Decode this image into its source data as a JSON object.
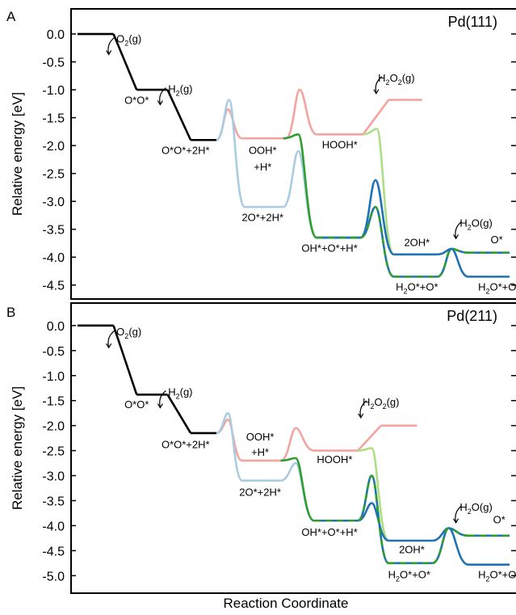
{
  "figure": {
    "xlabel": "Reaction Coordinate",
    "ylabel": "Relative energy [eV]"
  },
  "colors": {
    "black": "#000000",
    "pink": "#f4a39f",
    "light_blue": "#a9cce3",
    "dark_blue": "#1f72b3",
    "green": "#2e9e2e",
    "light_green": "#aede84"
  },
  "chart_data": [
    {
      "type": "line",
      "panel_letter": "A",
      "title": "Pd(111)",
      "ylabel": "Relative energy [eV]",
      "xlabel": "",
      "ylim": [
        -4.75,
        0.45
      ],
      "yticks": [
        "0.0",
        "-0.5",
        "-1.0",
        "-1.5",
        "-2.0",
        "-2.5",
        "-3.0",
        "-3.5",
        "-4.0",
        "-4.5"
      ],
      "series": [
        {
          "color": "black",
          "dashed": false,
          "segments": [
            {
              "kind": "flat",
              "x0": 0.0,
              "x1": 0.7,
              "y": 0.0
            },
            {
              "kind": "step",
              "x0": 0.7,
              "x1": 1.15,
              "y0": 0.0,
              "y1": -1.0
            },
            {
              "kind": "flat",
              "x0": 1.15,
              "x1": 1.75,
              "y": -1.0
            },
            {
              "kind": "step",
              "x0": 1.75,
              "x1": 2.2,
              "y0": -1.0,
              "y1": -1.9
            },
            {
              "kind": "flat",
              "x0": 2.2,
              "x1": 2.7,
              "y": -1.9
            }
          ]
        },
        {
          "color": "pink",
          "dashed": false,
          "segments": [
            {
              "kind": "barrier",
              "x0": 2.7,
              "x1": 3.2,
              "y0": -1.9,
              "peak": -1.35,
              "y1": -1.87
            },
            {
              "kind": "flat",
              "x0": 3.2,
              "x1": 4.05,
              "y": -1.87
            },
            {
              "kind": "barrier",
              "x0": 4.05,
              "x1": 4.65,
              "y0": -1.87,
              "peak": -1.0,
              "y1": -1.8
            },
            {
              "kind": "flat",
              "x0": 4.65,
              "x1": 5.55,
              "y": -1.8
            },
            {
              "kind": "step",
              "x0": 5.55,
              "x1": 6.05,
              "y0": -1.8,
              "y1": -1.18
            },
            {
              "kind": "flat",
              "x0": 6.05,
              "x1": 6.7,
              "y": -1.18
            }
          ]
        },
        {
          "color": "light_blue",
          "dashed": false,
          "segments": [
            {
              "kind": "barrier",
              "x0": 2.7,
              "x1": 3.25,
              "y0": -1.9,
              "peak": -1.18,
              "y1": -3.1
            },
            {
              "kind": "flat",
              "x0": 3.25,
              "x1": 4.0,
              "y": -3.1
            },
            {
              "kind": "barrier",
              "x0": 4.0,
              "x1": 4.65,
              "y0": -3.1,
              "peak": -2.1,
              "y1": -3.65
            }
          ]
        },
        {
          "color": "green",
          "dashed": false,
          "segments": [
            {
              "kind": "barrier",
              "x0": 4.0,
              "x1": 4.65,
              "y0": -1.87,
              "peak": -1.8,
              "y1": -3.65
            }
          ]
        },
        {
          "color": "light_green",
          "dashed": false,
          "segments": [
            {
              "kind": "barrier",
              "x0": 5.55,
              "x1": 6.15,
              "y0": -1.8,
              "peak": -1.7,
              "y1": -3.95
            }
          ]
        },
        {
          "color": "dark_blue",
          "dashed": false,
          "segments": [
            {
              "kind": "flat",
              "x0": 4.65,
              "x1": 5.5,
              "y": -3.65
            },
            {
              "kind": "barrier",
              "x0": 5.5,
              "x1": 6.15,
              "y0": -3.65,
              "peak": -2.62,
              "y1": -3.95
            },
            {
              "kind": "flat",
              "x0": 6.15,
              "x1": 7.0,
              "y": -3.95
            },
            {
              "kind": "barrier",
              "x0": 7.0,
              "x1": 7.6,
              "y0": -3.95,
              "peak": -3.85,
              "y1": -4.35
            },
            {
              "kind": "flat",
              "x0": 7.6,
              "x1": 8.4,
              "y": -4.35
            }
          ]
        },
        {
          "color": "green_dash",
          "dashed": true,
          "segments": [
            {
              "kind": "flat",
              "x0": 4.65,
              "x1": 5.5,
              "y": -3.65
            },
            {
              "kind": "barrier",
              "x0": 5.5,
              "x1": 6.15,
              "y0": -3.65,
              "peak": -3.1,
              "y1": -4.35
            },
            {
              "kind": "flat",
              "x0": 6.15,
              "x1": 7.0,
              "y": -4.35
            },
            {
              "kind": "barrier",
              "x0": 7.0,
              "x1": 7.6,
              "y0": -4.35,
              "peak": -3.85,
              "y1": -3.92
            },
            {
              "kind": "flat",
              "x0": 7.6,
              "x1": 8.4,
              "y": -3.92
            }
          ]
        }
      ],
      "annotations": [
        {
          "main": "O",
          "sub": "2",
          "tail": "(g)",
          "x": 1.0,
          "y": -0.15,
          "arrow": true
        },
        {
          "main": "O*O*",
          "sub": "",
          "tail": "",
          "x": 1.15,
          "y": -1.25,
          "arrow": false
        },
        {
          "main": "H",
          "sub": "2",
          "tail": "(g)",
          "x": 2.0,
          "y": -1.05,
          "arrow": true
        },
        {
          "main": "O*O*+2H*",
          "sub": "",
          "tail": "",
          "x": 2.1,
          "y": -2.15,
          "arrow": false
        },
        {
          "main": "OOH*",
          "sub": "",
          "tail": "",
          "x": 3.6,
          "y": -2.15,
          "arrow": false
        },
        {
          "main": "+H*",
          "sub": "",
          "tail": "",
          "x": 3.6,
          "y": -2.45,
          "arrow": false
        },
        {
          "main": "HOOH*",
          "sub": "",
          "tail": "",
          "x": 5.1,
          "y": -2.05,
          "arrow": false
        },
        {
          "main": "H",
          "sub": "2",
          "tail": "O",
          "tail_sub": "2",
          "tail2": "(g)",
          "x": 6.2,
          "y": -0.85,
          "arrow": true
        },
        {
          "main": "2O*+2H*",
          "sub": "",
          "tail": "",
          "x": 3.6,
          "y": -3.35,
          "arrow": false
        },
        {
          "main": "OH*+O*+H*",
          "sub": "",
          "tail": "",
          "x": 4.9,
          "y": -3.9,
          "arrow": false
        },
        {
          "main": "2OH*",
          "sub": "",
          "tail": "",
          "x": 6.6,
          "y": -3.8,
          "arrow": false
        },
        {
          "main": "H",
          "sub": "2",
          "tail": "O*+O*",
          "x": 6.6,
          "y": -4.6,
          "arrow": false
        },
        {
          "main": "H",
          "sub": "2",
          "tail": "O(g)",
          "x": 7.75,
          "y": -3.45,
          "arrow": true
        },
        {
          "main": "O*",
          "sub": "",
          "tail": "",
          "x": 8.15,
          "y": -3.75,
          "arrow": false
        },
        {
          "main": "H",
          "sub": "2",
          "tail": "O*+O*",
          "x": 8.2,
          "y": -4.6,
          "arrow": false
        }
      ]
    },
    {
      "type": "line",
      "panel_letter": "B",
      "title": "Pd(211)",
      "ylabel": "Relative energy [eV]",
      "xlabel": "Reaction Coordinate",
      "ylim": [
        -5.35,
        0.45
      ],
      "yticks": [
        "0.0",
        "-0.5",
        "-1.0",
        "-1.5",
        "-2.0",
        "-2.5",
        "-3.0",
        "-3.5",
        "-4.0",
        "-4.5",
        "-5.0"
      ],
      "series": [
        {
          "color": "black",
          "dashed": false,
          "segments": [
            {
              "kind": "flat",
              "x0": 0.0,
              "x1": 0.7,
              "y": 0.0
            },
            {
              "kind": "step",
              "x0": 0.7,
              "x1": 1.15,
              "y0": 0.0,
              "y1": -1.38
            },
            {
              "kind": "flat",
              "x0": 1.15,
              "x1": 1.75,
              "y": -1.38
            },
            {
              "kind": "step",
              "x0": 1.75,
              "x1": 2.2,
              "y0": -1.38,
              "y1": -2.15
            },
            {
              "kind": "flat",
              "x0": 2.2,
              "x1": 2.7,
              "y": -2.15
            }
          ]
        },
        {
          "color": "pink",
          "dashed": false,
          "segments": [
            {
              "kind": "barrier",
              "x0": 2.7,
              "x1": 3.2,
              "y0": -2.15,
              "peak": -1.88,
              "y1": -2.7
            },
            {
              "kind": "flat",
              "x0": 3.2,
              "x1": 3.95,
              "y": -2.7
            },
            {
              "kind": "barrier",
              "x0": 3.95,
              "x1": 4.6,
              "y0": -2.7,
              "peak": -2.05,
              "y1": -2.5
            },
            {
              "kind": "flat",
              "x0": 4.6,
              "x1": 5.45,
              "y": -2.5
            },
            {
              "kind": "step",
              "x0": 5.45,
              "x1": 5.9,
              "y0": -2.5,
              "y1": -2.0
            },
            {
              "kind": "flat",
              "x0": 5.9,
              "x1": 6.6,
              "y": -2.0
            }
          ]
        },
        {
          "color": "light_blue",
          "dashed": false,
          "segments": [
            {
              "kind": "barrier",
              "x0": 2.7,
              "x1": 3.2,
              "y0": -2.15,
              "peak": -1.75,
              "y1": -3.1
            },
            {
              "kind": "flat",
              "x0": 3.2,
              "x1": 3.95,
              "y": -3.1
            },
            {
              "kind": "barrier",
              "x0": 3.95,
              "x1": 4.6,
              "y0": -3.1,
              "peak": -2.75,
              "y1": -3.9
            }
          ]
        },
        {
          "color": "green",
          "dashed": false,
          "segments": [
            {
              "kind": "barrier",
              "x0": 3.95,
              "x1": 4.6,
              "y0": -2.7,
              "peak": -2.65,
              "y1": -3.9
            }
          ]
        },
        {
          "color": "light_green",
          "dashed": false,
          "segments": [
            {
              "kind": "barrier",
              "x0": 5.45,
              "x1": 6.05,
              "y0": -2.5,
              "peak": -2.45,
              "y1": -4.3
            }
          ]
        },
        {
          "color": "dark_blue",
          "dashed": false,
          "segments": [
            {
              "kind": "flat",
              "x0": 4.6,
              "x1": 5.45,
              "y": -3.9
            },
            {
              "kind": "barrier",
              "x0": 5.45,
              "x1": 6.05,
              "y0": -3.9,
              "peak": -3.55,
              "y1": -4.3
            },
            {
              "kind": "flat",
              "x0": 6.05,
              "x1": 6.9,
              "y": -4.3
            },
            {
              "kind": "barrier",
              "x0": 6.9,
              "x1": 7.6,
              "y0": -4.3,
              "peak": -4.05,
              "y1": -4.78
            },
            {
              "kind": "flat",
              "x0": 7.6,
              "x1": 8.4,
              "y": -4.78
            }
          ]
        },
        {
          "color": "green_dash",
          "dashed": true,
          "segments": [
            {
              "kind": "flat",
              "x0": 4.6,
              "x1": 5.45,
              "y": -3.9
            },
            {
              "kind": "barrier",
              "x0": 5.45,
              "x1": 6.05,
              "y0": -3.9,
              "peak": -3.0,
              "y1": -4.75
            },
            {
              "kind": "flat",
              "x0": 6.05,
              "x1": 6.9,
              "y": -4.75
            },
            {
              "kind": "barrier",
              "x0": 6.9,
              "x1": 7.6,
              "y0": -4.75,
              "peak": -4.05,
              "y1": -4.2
            },
            {
              "kind": "flat",
              "x0": 7.6,
              "x1": 8.4,
              "y": -4.2
            }
          ]
        }
      ],
      "annotations": [
        {
          "main": "O",
          "sub": "2",
          "tail": "(g)",
          "x": 1.0,
          "y": -0.2,
          "arrow": true
        },
        {
          "main": "O*O*",
          "sub": "",
          "tail": "",
          "x": 1.15,
          "y": -1.65,
          "arrow": false
        },
        {
          "main": "H",
          "sub": "2",
          "tail": "(g)",
          "x": 2.0,
          "y": -1.4,
          "arrow": true
        },
        {
          "main": "O*O*+2H*",
          "sub": "",
          "tail": "",
          "x": 2.1,
          "y": -2.45,
          "arrow": false
        },
        {
          "main": "OOH*",
          "sub": "",
          "tail": "",
          "x": 3.55,
          "y": -2.3,
          "arrow": false
        },
        {
          "main": "+H*",
          "sub": "",
          "tail": "",
          "x": 3.55,
          "y": -2.6,
          "arrow": false
        },
        {
          "main": "HOOH*",
          "sub": "",
          "tail": "",
          "x": 5.0,
          "y": -2.75,
          "arrow": false
        },
        {
          "main": "H",
          "sub": "2",
          "tail": "O",
          "tail_sub": "2",
          "tail2": "(g)",
          "x": 5.9,
          "y": -1.6,
          "arrow": true
        },
        {
          "main": "2O*+2H*",
          "sub": "",
          "tail": "",
          "x": 3.55,
          "y": -3.4,
          "arrow": false
        },
        {
          "main": "OH*+O*+H*",
          "sub": "",
          "tail": "",
          "x": 4.9,
          "y": -4.2,
          "arrow": false
        },
        {
          "main": "2OH*",
          "sub": "",
          "tail": "",
          "x": 6.5,
          "y": -4.55,
          "arrow": false
        },
        {
          "main": "H",
          "sub": "2",
          "tail": "O*+O*",
          "x": 6.45,
          "y": -5.05,
          "arrow": false
        },
        {
          "main": "H",
          "sub": "2",
          "tail": "O(g)",
          "x": 7.75,
          "y": -3.7,
          "arrow": true
        },
        {
          "main": "O*",
          "sub": "",
          "tail": "",
          "x": 8.2,
          "y": -3.95,
          "arrow": false
        },
        {
          "main": "H",
          "sub": "2",
          "tail": "O*+O*",
          "x": 8.2,
          "y": -5.05,
          "arrow": false
        }
      ]
    }
  ]
}
